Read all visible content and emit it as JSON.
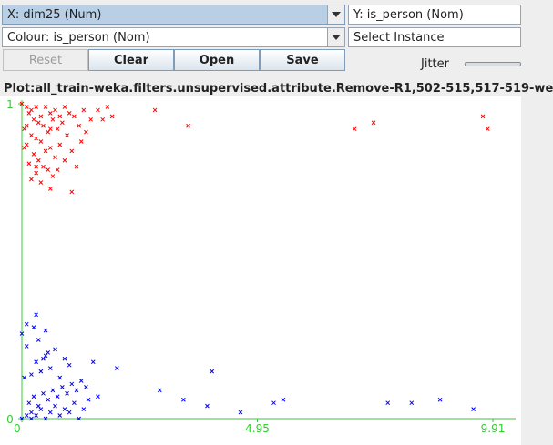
{
  "controls": {
    "x_axis": "X: dim25 (Num)",
    "y_axis": "Y: is_person (Nom)",
    "colour": "Colour: is_person (Nom)",
    "select_instance": "Select Instance",
    "reset": "Reset",
    "clear": "Clear",
    "open": "Open",
    "save": "Save",
    "jitter": "Jitter",
    "jitter_value": 0
  },
  "plot_title": "Plot:all_train-weka.filters.unsupervised.attribute.Remove-R1,502-515,517-519-we",
  "colors": {
    "axis": "#33cc33",
    "series_top": "#ff0000",
    "series_bottom": "#0000ff"
  },
  "chart_data": {
    "type": "scatter",
    "x_ticks": [
      "0",
      "4.95",
      "9.91"
    ],
    "y_ticks": [
      "0",
      "1"
    ],
    "xlim": [
      0,
      9.91
    ],
    "ylim": [
      0,
      1
    ],
    "marker": "x",
    "series": [
      {
        "color": "#ff0000",
        "points": [
          [
            0.0,
            1.0
          ],
          [
            0.1,
            0.99
          ],
          [
            0.2,
            0.98
          ],
          [
            0.3,
            0.99
          ],
          [
            0.15,
            0.97
          ],
          [
            0.4,
            0.96
          ],
          [
            0.5,
            0.99
          ],
          [
            0.25,
            0.95
          ],
          [
            0.6,
            0.97
          ],
          [
            0.35,
            0.94
          ],
          [
            0.7,
            0.98
          ],
          [
            0.45,
            0.93
          ],
          [
            0.8,
            0.96
          ],
          [
            0.05,
            0.92
          ],
          [
            0.55,
            0.91
          ],
          [
            0.9,
            0.99
          ],
          [
            0.65,
            0.95
          ],
          [
            0.2,
            0.9
          ],
          [
            1.0,
            0.97
          ],
          [
            0.75,
            0.92
          ],
          [
            0.3,
            0.89
          ],
          [
            0.85,
            0.94
          ],
          [
            0.4,
            0.88
          ],
          [
            0.95,
            0.9
          ],
          [
            1.1,
            0.96
          ],
          [
            0.1,
            0.87
          ],
          [
            0.6,
            0.86
          ],
          [
            1.2,
            0.93
          ],
          [
            0.5,
            0.85
          ],
          [
            0.25,
            0.84
          ],
          [
            1.3,
            0.98
          ],
          [
            0.7,
            0.83
          ],
          [
            0.35,
            0.82
          ],
          [
            0.8,
            0.87
          ],
          [
            1.45,
            0.95
          ],
          [
            0.15,
            0.81
          ],
          [
            0.45,
            0.8
          ],
          [
            0.9,
            0.82
          ],
          [
            1.05,
            0.85
          ],
          [
            0.55,
            0.79
          ],
          [
            0.3,
            0.78
          ],
          [
            0.65,
            0.77
          ],
          [
            1.15,
            0.8
          ],
          [
            0.2,
            0.76
          ],
          [
            0.4,
            0.75
          ],
          [
            0.75,
            0.79
          ],
          [
            0.1,
            0.93
          ],
          [
            0.05,
            0.86
          ],
          [
            0.6,
            0.92
          ],
          [
            1.25,
            0.88
          ],
          [
            1.6,
            0.98
          ],
          [
            2.8,
            0.98
          ],
          [
            3.5,
            0.93
          ],
          [
            7.0,
            0.92
          ],
          [
            7.4,
            0.94
          ],
          [
            9.7,
            0.96
          ],
          [
            9.8,
            0.92
          ],
          [
            1.9,
            0.96
          ],
          [
            1.05,
            0.72
          ],
          [
            0.6,
            0.73
          ],
          [
            0.3,
            0.8
          ],
          [
            1.7,
            0.95
          ],
          [
            1.8,
            0.99
          ],
          [
            1.35,
            0.91
          ]
        ]
      },
      {
        "color": "#0000ff",
        "points": [
          [
            0.0,
            0.0
          ],
          [
            0.1,
            0.01
          ],
          [
            0.2,
            0.02
          ],
          [
            0.3,
            0.01
          ],
          [
            0.4,
            0.03
          ],
          [
            0.5,
            0.0
          ],
          [
            0.6,
            0.02
          ],
          [
            0.7,
            0.04
          ],
          [
            0.8,
            0.01
          ],
          [
            0.9,
            0.03
          ],
          [
            1.0,
            0.02
          ],
          [
            1.1,
            0.05
          ],
          [
            1.2,
            0.0
          ],
          [
            1.3,
            0.03
          ],
          [
            1.4,
            0.06
          ],
          [
            0.15,
            0.05
          ],
          [
            0.25,
            0.07
          ],
          [
            0.35,
            0.04
          ],
          [
            0.45,
            0.08
          ],
          [
            0.55,
            0.06
          ],
          [
            0.65,
            0.09
          ],
          [
            0.75,
            0.07
          ],
          [
            0.85,
            0.1
          ],
          [
            0.95,
            0.08
          ],
          [
            1.05,
            0.11
          ],
          [
            1.15,
            0.09
          ],
          [
            1.25,
            0.12
          ],
          [
            1.35,
            0.1
          ],
          [
            0.05,
            0.13
          ],
          [
            0.2,
            0.14
          ],
          [
            0.4,
            0.15
          ],
          [
            0.6,
            0.16
          ],
          [
            0.8,
            0.13
          ],
          [
            1.0,
            0.17
          ],
          [
            0.3,
            0.18
          ],
          [
            0.5,
            0.2
          ],
          [
            0.7,
            0.22
          ],
          [
            0.1,
            0.23
          ],
          [
            0.35,
            0.25
          ],
          [
            0.55,
            0.21
          ],
          [
            0.0,
            0.27
          ],
          [
            0.25,
            0.29
          ],
          [
            0.45,
            0.19
          ],
          [
            1.5,
            0.18
          ],
          [
            2.0,
            0.16
          ],
          [
            2.9,
            0.09
          ],
          [
            3.4,
            0.06
          ],
          [
            3.9,
            0.04
          ],
          [
            4.0,
            0.15
          ],
          [
            4.6,
            0.02
          ],
          [
            5.3,
            0.05
          ],
          [
            5.5,
            0.06
          ],
          [
            7.7,
            0.05
          ],
          [
            8.2,
            0.05
          ],
          [
            8.8,
            0.06
          ],
          [
            9.5,
            0.03
          ],
          [
            0.5,
            0.28
          ],
          [
            0.1,
            0.3
          ],
          [
            0.3,
            0.33
          ],
          [
            0.2,
            0.0
          ],
          [
            1.6,
            0.07
          ],
          [
            0.9,
            0.19
          ]
        ]
      }
    ]
  }
}
